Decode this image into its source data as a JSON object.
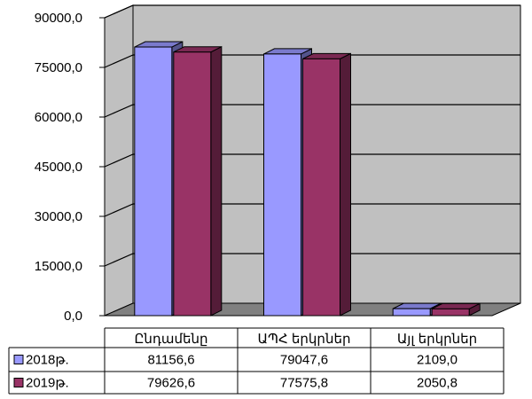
{
  "chart_data": {
    "type": "bar",
    "categories": [
      "Ընդամենը",
      "ԱՊՀ երկրներ",
      "Այլ երկրներ"
    ],
    "series": [
      {
        "name": "2018թ.",
        "values": [
          81156.6,
          79047.6,
          2109.0
        ],
        "value_labels": [
          "81156,6",
          "79047,6",
          "2109,0"
        ],
        "color": "#9999ff"
      },
      {
        "name": "2019թ.",
        "values": [
          79626.6,
          77575.8,
          2050.8
        ],
        "value_labels": [
          "79626,6",
          "77575,8",
          "2050,8"
        ],
        "color": "#993366"
      }
    ],
    "ylim": [
      0,
      90000
    ],
    "yticks": [
      0,
      15000,
      30000,
      45000,
      60000,
      75000,
      90000
    ],
    "ytick_labels": [
      "0,0",
      "15000,0",
      "30000,0",
      "45000,0",
      "60000,0",
      "75000,0",
      "90000,0"
    ],
    "grid": true,
    "legend": "data-table",
    "colors": {
      "wall": "#c0c0c0",
      "floor": "#808080",
      "gridline": "#000000"
    }
  }
}
